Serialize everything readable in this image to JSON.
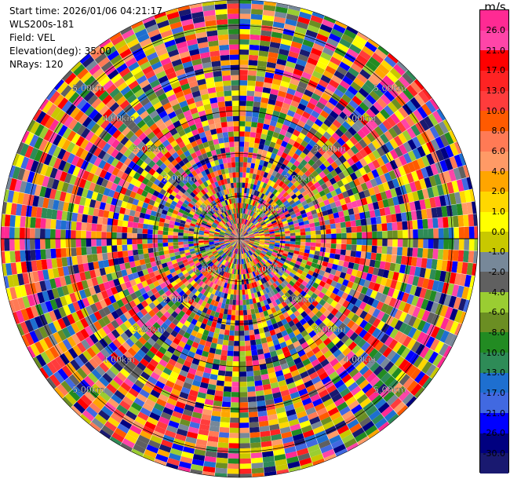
{
  "header": {
    "start_time": "Start time: 2026/01/06 04:21:17",
    "instrument": "WLS200s-181",
    "field": "Field: VEL",
    "elevation": "Elevation(deg): 35.00",
    "nrays": "NRays: 120"
  },
  "colorbar": {
    "unit": "m/s",
    "ticks": [
      "26.0",
      "21.0",
      "17.0",
      "13.0",
      "10.0",
      "8.0",
      "6.0",
      "4.0",
      "2.0",
      "1.0",
      "0.0",
      "-1.0",
      "-2.0",
      "-4.0",
      "-6.0",
      "-8.0",
      "-10.0",
      "-13.0",
      "-17.0",
      "-21.0",
      "-26.0",
      "-30.0"
    ],
    "colors": [
      "#ff2a93",
      "#ff45a8",
      "#ff0000",
      "#ff2323",
      "#ff3c3c",
      "#ff5a00",
      "#ff7a55",
      "#ff9a66",
      "#ffa500",
      "#ffd700",
      "#ffff00",
      "#c8c800",
      "#778899",
      "#606060",
      "#9acd32",
      "#6b8e23",
      "#228b22",
      "#2e8b57",
      "#1e6fd0",
      "#4169e1",
      "#0000ff",
      "#000080",
      "#191970"
    ]
  },
  "chart_data": {
    "type": "heatmap",
    "projection": "polar PPI",
    "field": "VEL",
    "units": "m/s",
    "nrays": 120,
    "value_range": [
      -30,
      30
    ],
    "range_rings_km": [
      1,
      2,
      3,
      4,
      5
    ],
    "ring_labels": [
      "1.00km",
      "2.00km",
      "3.00km",
      "4.00km",
      "5.00km"
    ],
    "colorbar_ticks": [
      26,
      21,
      17,
      13,
      10,
      8,
      6,
      4,
      2,
      1,
      0,
      -1,
      -2,
      -4,
      -6,
      -8,
      -10,
      -13,
      -17,
      -21,
      -26,
      -30
    ]
  }
}
